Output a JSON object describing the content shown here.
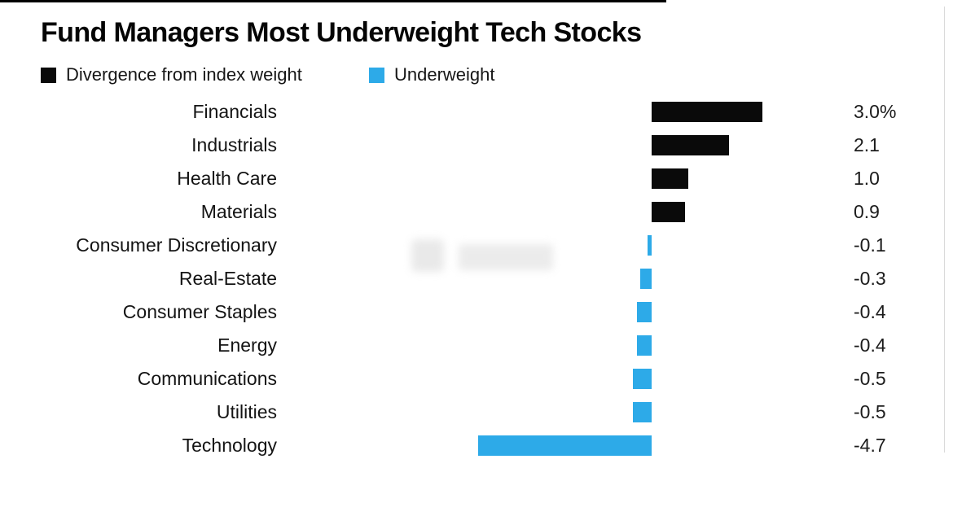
{
  "title": "Fund Managers Most Underweight Tech Stocks",
  "legend": {
    "items": [
      {
        "label": "Divergence from index weight",
        "color": "#0a0a0a"
      },
      {
        "label": "Underweight",
        "color": "#2daae8"
      }
    ]
  },
  "chart_data": {
    "type": "bar",
    "orientation": "horizontal",
    "title": "Fund Managers Most Underweight Tech Stocks",
    "categories": [
      "Financials",
      "Industrials",
      "Health Care",
      "Materials",
      "Consumer Discretionary",
      "Real-Estate",
      "Consumer Staples",
      "Energy",
      "Communications",
      "Utilities",
      "Technology"
    ],
    "values": [
      3.0,
      2.1,
      1.0,
      0.9,
      -0.1,
      -0.3,
      -0.4,
      -0.4,
      -0.5,
      -0.5,
      -4.7
    ],
    "value_labels": [
      "3.0%",
      "2.1",
      "1.0",
      "0.9",
      "-0.1",
      "-0.3",
      "-0.4",
      "-0.4",
      "-0.5",
      "-0.5",
      "-4.7"
    ],
    "series": [
      {
        "name": "Divergence from index weight",
        "color": "#0a0a0a",
        "applies_to": "positive values"
      },
      {
        "name": "Underweight",
        "color": "#2daae8",
        "applies_to": "negative values"
      }
    ],
    "positive_color": "#0a0a0a",
    "negative_color": "#2daae8",
    "xlim": [
      -4.7,
      3.0
    ],
    "xlabel": "",
    "ylabel": "",
    "grid": false,
    "legend_position": "top-left",
    "value_label_position": "right column"
  }
}
